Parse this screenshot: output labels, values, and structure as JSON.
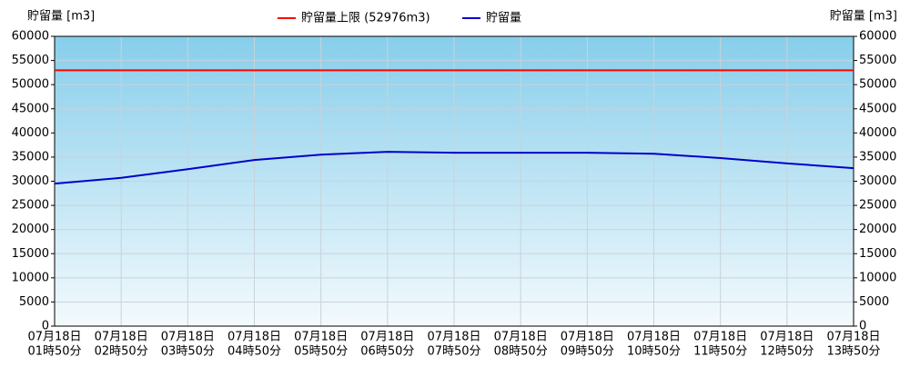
{
  "chart_data": {
    "type": "line",
    "ylabel": "貯留量 [m3]",
    "categories": [
      [
        "07月18日",
        "01時50分"
      ],
      [
        "07月18日",
        "02時50分"
      ],
      [
        "07月18日",
        "03時50分"
      ],
      [
        "07月18日",
        "04時50分"
      ],
      [
        "07月18日",
        "05時50分"
      ],
      [
        "07月18日",
        "06時50分"
      ],
      [
        "07月18日",
        "07時50分"
      ],
      [
        "07月18日",
        "08時50分"
      ],
      [
        "07月18日",
        "09時50分"
      ],
      [
        "07月18日",
        "10時50分"
      ],
      [
        "07月18日",
        "11時50分"
      ],
      [
        "07月18日",
        "12時50分"
      ],
      [
        "07月18日",
        "13時50分"
      ]
    ],
    "series": [
      {
        "name": "貯留量",
        "color": "#0000cc",
        "values": [
          29500,
          30700,
          32500,
          34400,
          35500,
          36100,
          35900,
          35900,
          35900,
          35700,
          34800,
          33700,
          32700
        ]
      }
    ],
    "limit": {
      "name": "貯留量上限 (52976m3)",
      "value": 52976,
      "color": "#ff0000"
    },
    "ylim": [
      0,
      60000
    ],
    "yticks": [
      0,
      5000,
      10000,
      15000,
      20000,
      25000,
      30000,
      35000,
      40000,
      45000,
      50000,
      55000,
      60000
    ],
    "grid": true
  }
}
